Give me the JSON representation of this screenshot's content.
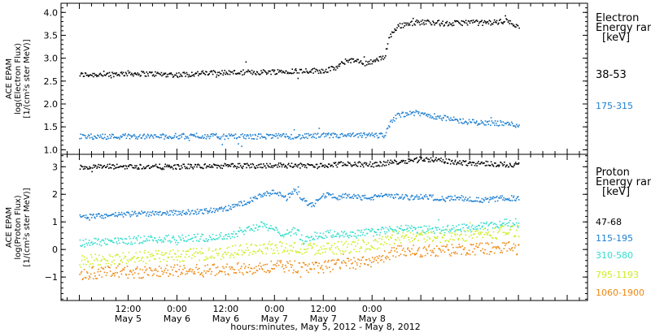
{
  "chart_data": [
    {
      "type": "scatter",
      "panel": "electron",
      "ylabel_lines": [
        "ACE EPAM",
        "log(Electron Flux)",
        "[1/(cm²s ster MeV)]"
      ],
      "ylim": [
        0.9,
        4.2
      ],
      "yticks": [
        1.0,
        1.5,
        2.0,
        2.5,
        3.0,
        3.5,
        4.0
      ],
      "ytick_labels": [
        "1.0",
        "1.5",
        "2.0",
        "2.5",
        "3.0",
        "3.5",
        "4.0"
      ],
      "legend_title_lines": [
        "Electron",
        "Energy ran",
        "[keV]"
      ],
      "series": [
        {
          "name": "38-53",
          "color": "#000000",
          "x": [
            0,
            6,
            12,
            18,
            24,
            30,
            36,
            42,
            48,
            54,
            60,
            63,
            66,
            70,
            72,
            74,
            75,
            76,
            78,
            81,
            84,
            87,
            90,
            93,
            96,
            99,
            102,
            105,
            108
          ],
          "values": [
            2.65,
            2.66,
            2.68,
            2.67,
            2.65,
            2.68,
            2.7,
            2.7,
            2.72,
            2.74,
            2.74,
            2.8,
            2.98,
            2.9,
            2.95,
            3.0,
            3.05,
            3.45,
            3.7,
            3.78,
            3.8,
            3.8,
            3.76,
            3.78,
            3.8,
            3.78,
            3.8,
            3.82,
            3.72
          ]
        },
        {
          "name": "175-315",
          "color": "#1e7fd0",
          "x": [
            0,
            6,
            12,
            18,
            24,
            30,
            36,
            42,
            48,
            54,
            60,
            66,
            72,
            75,
            76,
            78,
            81,
            84,
            87,
            90,
            93,
            96,
            99,
            102,
            105,
            108
          ],
          "values": [
            1.3,
            1.3,
            1.31,
            1.3,
            1.31,
            1.31,
            1.3,
            1.3,
            1.31,
            1.3,
            1.32,
            1.32,
            1.33,
            1.33,
            1.55,
            1.75,
            1.82,
            1.8,
            1.75,
            1.7,
            1.65,
            1.62,
            1.6,
            1.6,
            1.58,
            1.55
          ]
        }
      ]
    },
    {
      "type": "scatter",
      "panel": "proton",
      "ylabel_lines": [
        "ACE EPAM",
        "log(Proton Flux)",
        "[1/(cm²s ster MeV)]"
      ],
      "ylim": [
        -1.85,
        3.45
      ],
      "yticks": [
        -1,
        0,
        1,
        2,
        3
      ],
      "ytick_labels": [
        "−1",
        "0",
        "1",
        "2",
        "3"
      ],
      "legend_title_lines": [
        "Proton",
        "Energy ran",
        "[keV]"
      ],
      "series": [
        {
          "name": "47-68",
          "color": "#000000",
          "x": [
            0,
            6,
            12,
            18,
            24,
            30,
            36,
            42,
            48,
            54,
            60,
            63,
            66,
            72,
            75,
            78,
            81,
            84,
            87,
            90,
            93,
            96,
            99,
            102,
            105,
            108
          ],
          "values": [
            3.0,
            3.02,
            3.03,
            3.02,
            3.02,
            3.04,
            3.05,
            3.05,
            3.08,
            3.06,
            3.05,
            3.1,
            3.12,
            3.1,
            3.15,
            3.2,
            3.25,
            3.3,
            3.28,
            3.22,
            3.18,
            3.15,
            3.15,
            3.12,
            3.1,
            3.1
          ]
        },
        {
          "name": "115-195",
          "color": "#1e7fd0",
          "x": [
            0,
            6,
            12,
            18,
            24,
            30,
            36,
            42,
            45,
            48,
            51,
            53,
            55,
            57,
            59,
            61,
            63,
            66,
            69,
            72,
            75,
            78,
            81,
            84,
            87,
            90,
            93,
            96,
            99,
            102,
            105,
            108
          ],
          "values": [
            1.2,
            1.25,
            1.3,
            1.35,
            1.35,
            1.4,
            1.5,
            1.8,
            2.0,
            2.1,
            1.9,
            2.2,
            1.8,
            1.6,
            1.95,
            2.0,
            1.9,
            2.0,
            1.9,
            1.9,
            2.0,
            1.95,
            1.9,
            1.95,
            1.9,
            1.85,
            1.9,
            1.85,
            1.8,
            1.85,
            1.9,
            1.85
          ]
        },
        {
          "name": "310-580",
          "color": "#33ddcc",
          "x": [
            0,
            6,
            12,
            18,
            24,
            30,
            36,
            42,
            45,
            48,
            51,
            53,
            55,
            57,
            60,
            63,
            66,
            69,
            72,
            75,
            78,
            81,
            84,
            87,
            90,
            93,
            96,
            99,
            102,
            105,
            108
          ],
          "values": [
            0.25,
            0.3,
            0.35,
            0.4,
            0.4,
            0.45,
            0.5,
            0.8,
            0.9,
            0.7,
            0.6,
            0.75,
            0.3,
            0.5,
            0.55,
            0.6,
            0.55,
            0.6,
            0.65,
            0.7,
            0.75,
            0.75,
            0.72,
            0.75,
            0.75,
            0.8,
            0.8,
            0.85,
            0.9,
            1.0,
            0.95
          ]
        },
        {
          "name": "795-1193",
          "color": "#ccee22",
          "x": [
            0,
            6,
            12,
            18,
            24,
            30,
            36,
            42,
            48,
            54,
            60,
            66,
            72,
            75,
            78,
            81,
            84,
            87,
            90,
            93,
            96,
            99,
            102,
            105,
            108
          ],
          "values": [
            -0.4,
            -0.35,
            -0.3,
            -0.25,
            -0.2,
            -0.15,
            -0.1,
            0.05,
            0.1,
            0.05,
            0.05,
            0.1,
            0.2,
            0.35,
            0.45,
            0.5,
            0.5,
            0.5,
            0.5,
            0.55,
            0.55,
            0.6,
            0.6,
            0.7,
            0.7
          ]
        },
        {
          "name": "1060-1900",
          "color": "#ee8811",
          "x": [
            0,
            6,
            12,
            18,
            24,
            30,
            36,
            42,
            48,
            54,
            60,
            66,
            72,
            75,
            78,
            81,
            84,
            87,
            90,
            93,
            96,
            99,
            102,
            105,
            108
          ],
          "values": [
            -0.85,
            -0.8,
            -0.8,
            -0.8,
            -0.75,
            -0.75,
            -0.7,
            -0.65,
            -0.6,
            -0.6,
            -0.6,
            -0.5,
            -0.45,
            -0.2,
            -0.05,
            0.0,
            -0.05,
            0.0,
            0.0,
            0.0,
            0.0,
            0.05,
            0.05,
            0.1,
            0.05
          ]
        }
      ]
    }
  ],
  "xaxis": {
    "xlim": [
      -4.5,
      125
    ],
    "major_ticks": [
      12,
      24,
      36,
      48,
      60,
      72,
      84,
      96,
      108,
      120
    ],
    "labeled_ticks": [
      {
        "x": 12,
        "time": "12:00",
        "date": "May 5"
      },
      {
        "x": 24,
        "time": "0:00",
        "date": "May 6"
      },
      {
        "x": 36,
        "time": "12:00",
        "date": "May 6"
      },
      {
        "x": 48,
        "time": "0:00",
        "date": "May 7"
      },
      {
        "x": 60,
        "time": "12:00",
        "date": "May 7"
      },
      {
        "x": 72,
        "time": "0:00",
        "date": "May 8"
      }
    ],
    "title": "hours:minutes, May  5, 2012 - May  8, 2012"
  }
}
